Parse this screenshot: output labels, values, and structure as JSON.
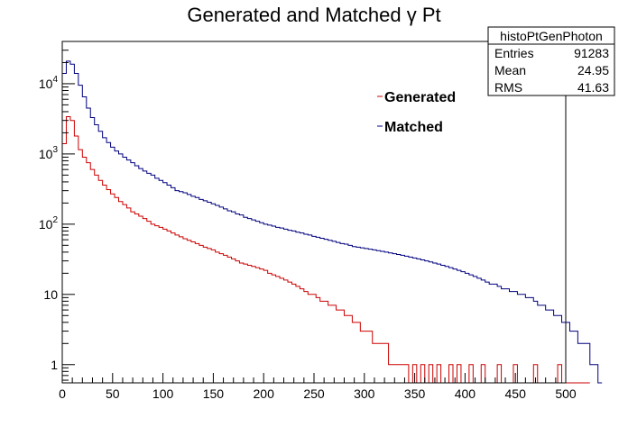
{
  "chart_data": {
    "type": "histogram",
    "title": "Generated and Matched γ Pt",
    "xlabel": "",
    "ylabel": "",
    "xlim": [
      0,
      500
    ],
    "ylim": [
      0.55,
      40000
    ],
    "yscale": "log",
    "bin_width": 4,
    "x_ticks": [
      "0",
      "50",
      "100",
      "150",
      "200",
      "250",
      "300",
      "350",
      "400",
      "450",
      "500"
    ],
    "y_ticks": [
      {
        "value": 1,
        "label": "1"
      },
      {
        "value": 10,
        "label": "10"
      },
      {
        "value": 100,
        "base": "10",
        "exp": "2"
      },
      {
        "value": 1000,
        "base": "10",
        "exp": "3"
      },
      {
        "value": 10000,
        "base": "10",
        "exp": "4"
      }
    ],
    "legend_position": "upper-middle-right",
    "series": [
      {
        "name": "Matched",
        "color": "#00007f",
        "values": [
          14000,
          21000,
          19000,
          14000,
          9500,
          6500,
          4500,
          3300,
          2600,
          2100,
          1700,
          1450,
          1250,
          1100,
          1000,
          900,
          820,
          750,
          680,
          620,
          570,
          530,
          500,
          450,
          420,
          390,
          360,
          330,
          300,
          290,
          280,
          265,
          250,
          240,
          225,
          215,
          205,
          195,
          185,
          175,
          165,
          155,
          150,
          140,
          135,
          125,
          120,
          115,
          110,
          105,
          100,
          97,
          94,
          90,
          88,
          85,
          82,
          80,
          77,
          75,
          72,
          70,
          67,
          65,
          63,
          61,
          59,
          57,
          55,
          53,
          52,
          50,
          48,
          47,
          46,
          45,
          44,
          43,
          42,
          41,
          40,
          39,
          38,
          37,
          36,
          35,
          34,
          33,
          32,
          31,
          30,
          29,
          28,
          27,
          26,
          25,
          24,
          23,
          22,
          21,
          20,
          19,
          18,
          17,
          16,
          15,
          14,
          14,
          13,
          12,
          12,
          11,
          11,
          10,
          10,
          9,
          9,
          8,
          7,
          7,
          6,
          6,
          5,
          5,
          4,
          4,
          3,
          3,
          2,
          2,
          2,
          1,
          1,
          0
        ]
      },
      {
        "name": "Generated",
        "color": "#cc0000",
        "values": [
          1400,
          3400,
          3000,
          1800,
          1150,
          900,
          750,
          600,
          500,
          420,
          360,
          310,
          270,
          240,
          210,
          190,
          170,
          150,
          140,
          130,
          120,
          110,
          100,
          95,
          90,
          85,
          80,
          75,
          70,
          66,
          62,
          59,
          56,
          53,
          50,
          47,
          45,
          43,
          40,
          38,
          36,
          34,
          32,
          30,
          28,
          27,
          26,
          25,
          24,
          23,
          22,
          20,
          19,
          18,
          17,
          16,
          15,
          14,
          13,
          12,
          11,
          10,
          10,
          9,
          8,
          8,
          7,
          7,
          6,
          6,
          5,
          5,
          4,
          4,
          3,
          3,
          3,
          2,
          2,
          2,
          2,
          1,
          1,
          1,
          1,
          1,
          0,
          1,
          0,
          1,
          0,
          1,
          0,
          1,
          0,
          0,
          1,
          0,
          1,
          0,
          0,
          1,
          0,
          0,
          1,
          0,
          0,
          0,
          1,
          0,
          0,
          0,
          1,
          0,
          0,
          0,
          0,
          1,
          0,
          0,
          0,
          0,
          0,
          1,
          0,
          0,
          0,
          0,
          0,
          0,
          0
        ]
      }
    ],
    "stats_box": {
      "name": "histoPtGenPhoton",
      "rows": [
        {
          "label": "Entries",
          "value": "91283"
        },
        {
          "label": "Mean",
          "value": "24.95"
        },
        {
          "label": "RMS",
          "value": "41.63"
        }
      ]
    }
  }
}
